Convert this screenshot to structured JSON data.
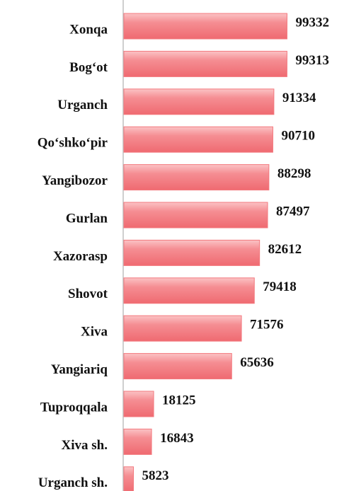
{
  "chart_data": {
    "type": "bar",
    "orientation": "horizontal",
    "categories": [
      "Xonqa",
      "Bog‘ot",
      "Urganch",
      "Qo‘shko‘pir",
      "Yangibozor",
      "Gurlan",
      "Xazorasp",
      "Shovot",
      "Xiva",
      "Yangiariq",
      "Tuproqqala",
      "Xiva sh.",
      "Urganch sh."
    ],
    "values": [
      99332,
      99313,
      91334,
      90710,
      88298,
      87497,
      82612,
      79418,
      71576,
      65636,
      18125,
      16843,
      5823
    ],
    "color": "#f3787e",
    "xlim": [
      0,
      100000
    ]
  }
}
